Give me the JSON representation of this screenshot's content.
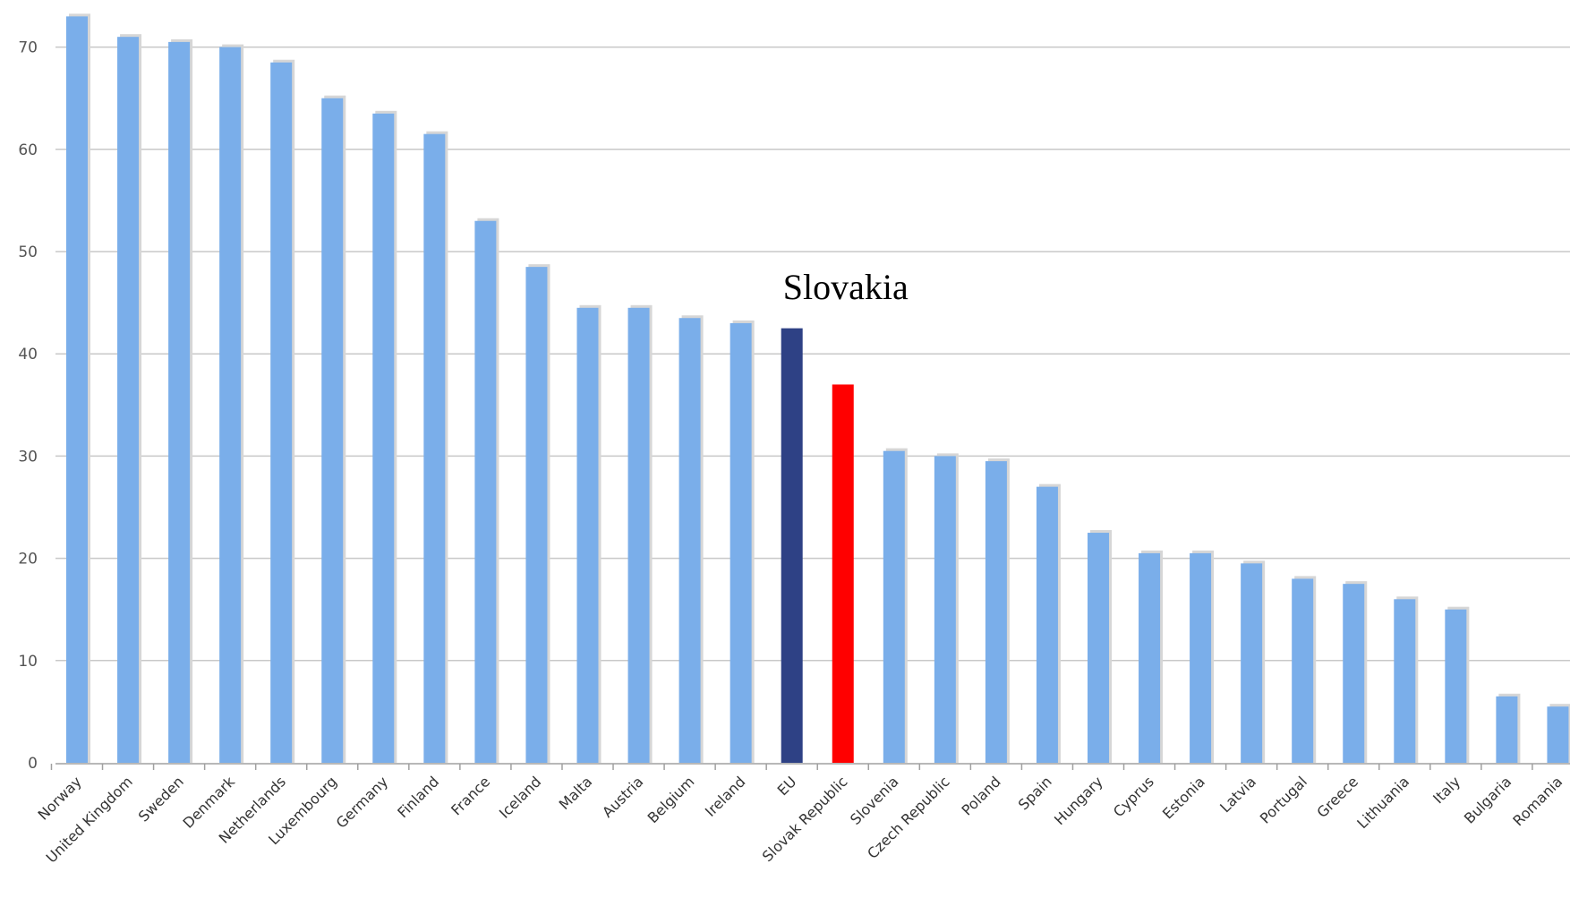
{
  "colors": {
    "default_bar": "#7aaeea",
    "bar_shadow": "#d6d6d6",
    "eu_bar": "#2e4185",
    "highlight_bar": "#ff0000",
    "grid": "#c8c8c8",
    "background": "#ffffff"
  },
  "chart_data": {
    "type": "bar",
    "categories": [
      "Norway",
      "United Kingdom",
      "Sweden",
      "Denmark",
      "Netherlands",
      "Luxembourg",
      "Germany",
      "Finland",
      "France",
      "Iceland",
      "Malta",
      "Austria",
      "Belgium",
      "Ireland",
      "EU",
      "Slovak Republic",
      "Slovenia",
      "Czech Republic",
      "Poland",
      "Spain",
      "Hungary",
      "Cyprus",
      "Estonia",
      "Latvia",
      "Portugal",
      "Greece",
      "Lithuania",
      "Italy",
      "Bulgaria",
      "Romania"
    ],
    "values": [
      73,
      71,
      70.5,
      70,
      68.5,
      65,
      63.5,
      61.5,
      53,
      48.5,
      44.5,
      44.5,
      43.5,
      43,
      42.5,
      37,
      30.5,
      30,
      29.5,
      27,
      22.5,
      20.5,
      20.5,
      19.5,
      18,
      17.5,
      16,
      15,
      6.5,
      5.5
    ],
    "highlight": {
      "EU": "eu_bar",
      "Slovak Republic": "highlight_bar"
    },
    "annotations": [
      {
        "text": "Slovakia",
        "category": "Slovak Republic"
      }
    ],
    "title": "",
    "xlabel": "",
    "ylabel": "",
    "ylim": [
      0,
      73
    ],
    "yticks": [
      0,
      10,
      20,
      30,
      40,
      50,
      60,
      70
    ],
    "grid": true,
    "legend": "none"
  }
}
